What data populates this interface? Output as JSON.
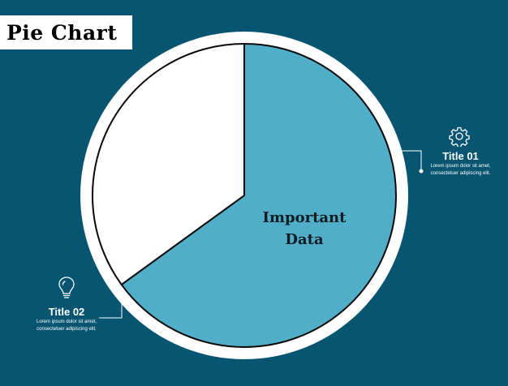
{
  "header": {
    "title": "Pie Chart"
  },
  "colors": {
    "background": "#075571",
    "slice_main": "#51aec9",
    "slice_secondary": "#ffffff",
    "ring": "#ffffff",
    "outline": "#0a0a0a"
  },
  "chart_data": {
    "type": "pie",
    "title": "Pie Chart",
    "center_label": [
      "Important",
      "Data"
    ],
    "slices": [
      {
        "label": "Title 01",
        "value": 65,
        "color": "#51aec9",
        "icon": "gear-icon"
      },
      {
        "label": "Title 02",
        "value": 35,
        "color": "#ffffff",
        "icon": "lightbulb-icon"
      }
    ],
    "annotations": [
      {
        "title": "Title 01",
        "text": [
          "Lorem ipsum dolor sit amet,",
          "consectetuer adipiscing elit."
        ],
        "icon": "gear-icon"
      },
      {
        "title": "Title 02",
        "text": [
          "Lorem ipsum dolor sit amet,",
          "consectetuer adipiscing elit."
        ],
        "icon": "lightbulb-icon"
      }
    ]
  }
}
